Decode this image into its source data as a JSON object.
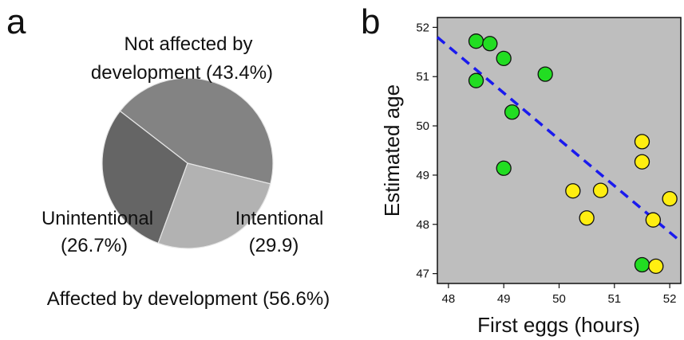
{
  "chart_data": [
    {
      "panel": "a",
      "type": "pie",
      "slices": [
        {
          "name": "Not affected by development",
          "value": 43.4,
          "color": "#838383"
        },
        {
          "name": "Intentional",
          "value": 29.9,
          "color": "#656565"
        },
        {
          "name": "Unintentional",
          "value": 26.7,
          "color": "#b2b2b2"
        }
      ],
      "labels": {
        "not_affected_line1": "Not affected by",
        "not_affected_line2": "development (43.4%)",
        "intentional_line1": "Intentional",
        "intentional_line2": "(29.9)",
        "unintentional_line1": "Unintentional",
        "unintentional_line2": "(26.7%)",
        "affected_total": "Affected by development (56.6%)"
      }
    },
    {
      "panel": "b",
      "type": "scatter",
      "xlabel": "First eggs (hours)",
      "ylabel": "Estimated age",
      "xlim": [
        47.8,
        52.2
      ],
      "ylim": [
        46.8,
        52.2
      ],
      "xticks": [
        48,
        49,
        50,
        51,
        52
      ],
      "yticks": [
        47,
        48,
        49,
        50,
        51,
        52
      ],
      "background": "#bebebe",
      "series": [
        {
          "color": "#22dd22",
          "points": [
            [
              48.5,
              51.72
            ],
            [
              48.75,
              51.67
            ],
            [
              49.0,
              51.37
            ],
            [
              48.5,
              50.92
            ],
            [
              49.75,
              51.05
            ],
            [
              49.15,
              50.28
            ],
            [
              49.0,
              49.14
            ],
            [
              51.5,
              47.18
            ]
          ]
        },
        {
          "color": "#ffee11",
          "points": [
            [
              51.5,
              49.68
            ],
            [
              51.5,
              49.27
            ],
            [
              50.25,
              48.68
            ],
            [
              50.75,
              48.69
            ],
            [
              50.5,
              48.13
            ],
            [
              51.7,
              48.09
            ],
            [
              52.0,
              48.52
            ],
            [
              51.75,
              47.15
            ]
          ]
        }
      ],
      "trendline": {
        "x": [
          47.8,
          52.2
        ],
        "y": [
          51.8,
          47.65
        ],
        "color": "#1a1aee"
      }
    }
  ],
  "panel_labels": {
    "a": "a",
    "b": "b"
  }
}
